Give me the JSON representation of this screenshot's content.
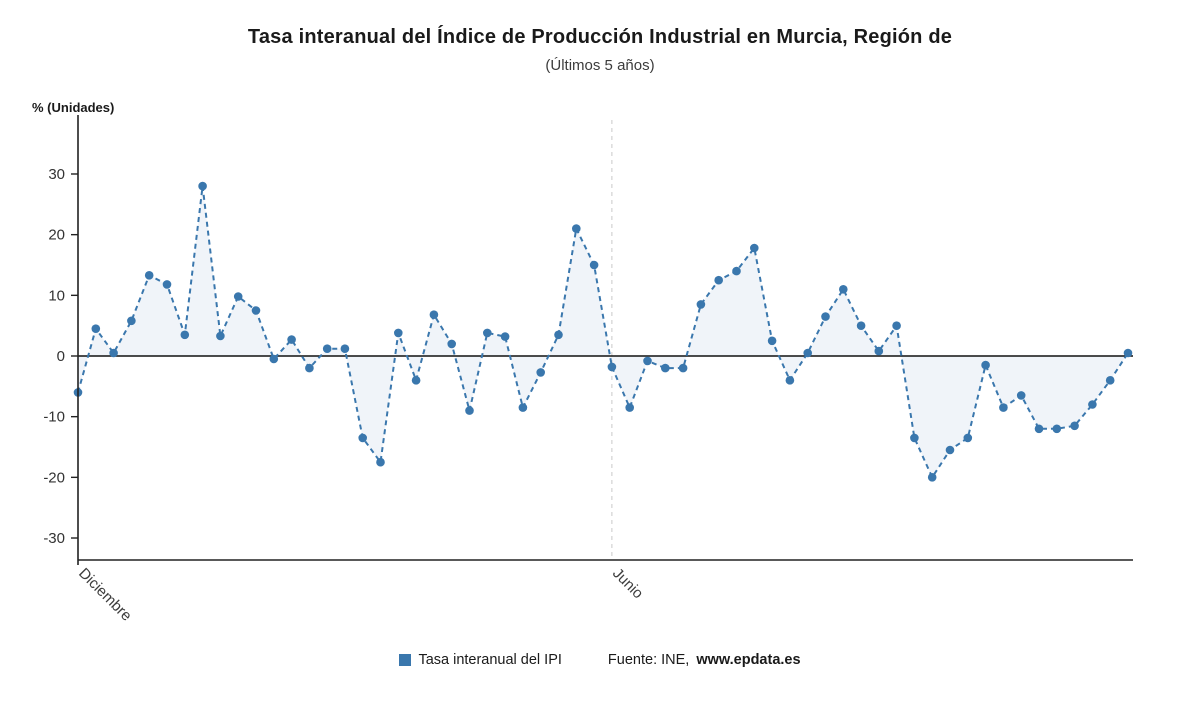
{
  "header": {
    "title": "Tasa interanual del Índice de Producción Industrial en Murcia, Región de",
    "subtitle": "(Últimos 5 años)"
  },
  "axis": {
    "unit_label": "% (Unidades)"
  },
  "legend": {
    "series_label": "Tasa interanual del IPI",
    "source_prefix": "Fuente: INE, ",
    "source_link": "www.epdata.es"
  },
  "chart_data": {
    "type": "line",
    "title": "Tasa interanual del Índice de Producción Industrial en Murcia, Región de",
    "subtitle": "(Últimos 5 años)",
    "xlabel": "",
    "ylabel": "% (Unidades)",
    "ylim": [
      -35,
      35
    ],
    "yticks": [
      30,
      20,
      10,
      0,
      -10,
      -20,
      -30
    ],
    "grid": "vertical-dashed-at-labeled-ticks",
    "legend_position": "bottom",
    "x_tick_labels": [
      {
        "index": 0,
        "label": "Diciembre"
      },
      {
        "index": 30,
        "label": "Junio"
      }
    ],
    "series": [
      {
        "name": "Tasa interanual del IPI",
        "values": [
          -6,
          4.5,
          0.5,
          5.8,
          13.3,
          11.8,
          3.5,
          28,
          3.3,
          9.8,
          7.5,
          -0.5,
          2.7,
          -2,
          1.2,
          1.2,
          -13.5,
          -17.5,
          3.8,
          -4,
          6.8,
          2,
          -9,
          3.8,
          3.2,
          -8.5,
          -2.7,
          3.5,
          21,
          15,
          -1.8,
          -8.5,
          -0.8,
          -2,
          -2,
          8.5,
          12.5,
          14,
          17.8,
          2.5,
          -4,
          0.5,
          6.5,
          11,
          5,
          0.8,
          5,
          -13.5,
          -20,
          -15.5,
          -13.5,
          -1.5,
          -8.5,
          -6.5,
          -12,
          -12,
          -11.5,
          -8,
          -4,
          0.5
        ]
      }
    ],
    "colors": {
      "line": "#3a77ad",
      "marker": "#3a77ad",
      "area_fill": "#3a77ad",
      "area_fill_opacity": 0.08,
      "zero_line": "#111111",
      "axis": "#222222",
      "gridline": "#c9c9c9",
      "tick_text": "#333333"
    }
  }
}
